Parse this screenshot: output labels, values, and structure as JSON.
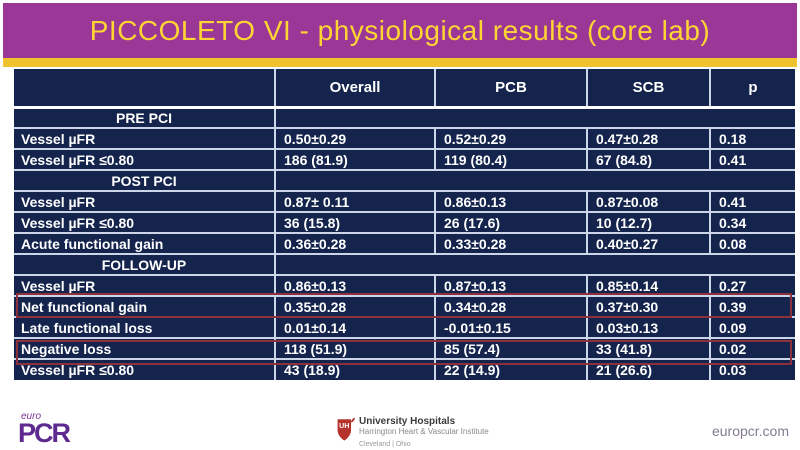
{
  "slide": {
    "title": "PICCOLETO VI - physiological results (core lab)"
  },
  "table": {
    "columns": [
      "",
      "Overall",
      "PCB",
      "SCB",
      "p"
    ],
    "rows": [
      {
        "type": "section",
        "label": "PRE PCI",
        "highlight": false
      },
      {
        "type": "data",
        "label": "Vessel µFR",
        "cells": [
          "0.50±0.29",
          "0.52±0.29",
          "0.47±0.28",
          "0.18"
        ],
        "highlight": false
      },
      {
        "type": "data",
        "label": "Vessel µFR ≤0.80",
        "cells": [
          "186 (81.9)",
          "119 (80.4)",
          "67 (84.8)",
          "0.41"
        ],
        "highlight": false
      },
      {
        "type": "section",
        "label": "POST PCI",
        "highlight": false
      },
      {
        "type": "data",
        "label": "Vessel µFR",
        "cells": [
          "0.87± 0.11",
          "0.86±0.13",
          "0.87±0.08",
          "0.41"
        ],
        "highlight": false
      },
      {
        "type": "data",
        "label": "Vessel µFR ≤0.80",
        "cells": [
          "36 (15.8)",
          "26 (17.6)",
          "10 (12.7)",
          "0.34"
        ],
        "highlight": false
      },
      {
        "type": "data",
        "label": "Acute functional gain",
        "cells": [
          "0.36±0.28",
          "0.33±0.28",
          "0.40±0.27",
          "0.08"
        ],
        "highlight": false
      },
      {
        "type": "section",
        "label": "FOLLOW-UP",
        "highlight": false
      },
      {
        "type": "data",
        "label": "Vessel µFR",
        "cells": [
          "0.86±0.13",
          "0.87±0.13",
          "0.85±0.14",
          "0.27"
        ],
        "highlight": true
      },
      {
        "type": "data",
        "label": "Net functional gain",
        "cells": [
          "0.35±0.28",
          "0.34±0.28",
          "0.37±0.30",
          "0.39"
        ],
        "highlight": false
      },
      {
        "type": "data",
        "label": "Late functional loss",
        "cells": [
          "0.01±0.14",
          "-0.01±0.15",
          "0.03±0.13",
          "0.09"
        ],
        "highlight": true
      },
      {
        "type": "data",
        "label": "Negative loss",
        "cells": [
          "118 (51.9)",
          "85 (57.4)",
          "33 (41.8)",
          "0.02"
        ],
        "highlight": false
      },
      {
        "type": "data",
        "label": "Vessel µFR ≤0.80",
        "cells": [
          "43 (18.9)",
          "22 (14.9)",
          "21 (26.6)",
          "0.03"
        ],
        "highlight": false
      }
    ]
  },
  "footer": {
    "europcr_logo": {
      "top": "euro",
      "main": "PCR"
    },
    "uh_logo": {
      "shield": "UH",
      "line1": "University Hospitals",
      "line2": "Harrington Heart & Vascular Institute",
      "line3": "Cleveland | Ohio"
    },
    "website": "europcr.com"
  },
  "colors": {
    "banner_purple": "#9a3797",
    "title_yellow": "#ffd534",
    "gold_stripe": "#f0c32e",
    "table_navy": "#14244d",
    "cell_border": "#ccd6e8",
    "highlight_red": "#8c303c",
    "europcr_purple": "#5f2a8f",
    "uh_red": "#b5332a"
  }
}
